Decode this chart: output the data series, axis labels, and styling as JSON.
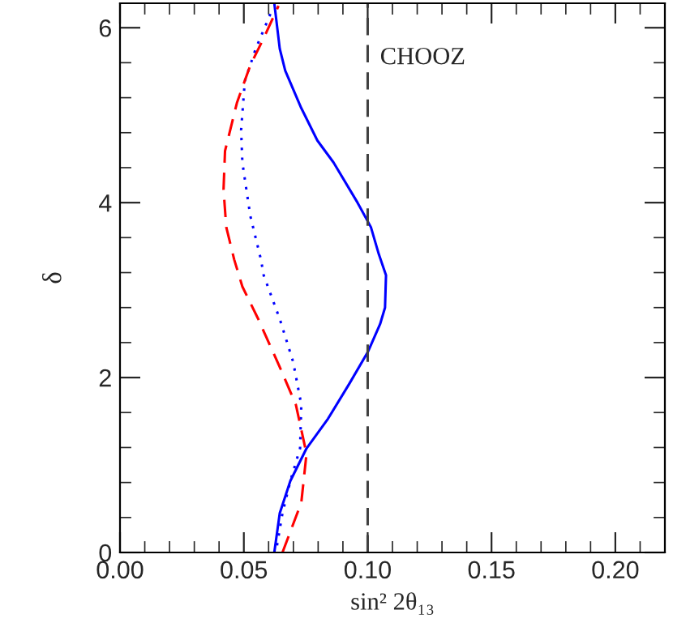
{
  "chart_data": {
    "type": "line",
    "xlabel": "sin² 2θ₁₃",
    "ylabel": "δ",
    "xlim": [
      0,
      0.22
    ],
    "xticks": [
      {
        "value": 0,
        "label": "0.00"
      },
      {
        "value": 0.05,
        "label": "0.05"
      },
      {
        "value": 0.1,
        "label": "0.10"
      },
      {
        "value": 0.15,
        "label": "0.15"
      },
      {
        "value": 0.2,
        "label": "0.20"
      }
    ],
    "ylim": [
      0,
      6.28
    ],
    "yticks": [
      0,
      2,
      4,
      6
    ],
    "grid": false,
    "legend": false,
    "series": [
      {
        "color": "#0000ff",
        "line_style": "solid",
        "x": [
          0.0623,
          0.0645,
          0.0688,
          0.0753,
          0.084,
          0.0926,
          0.1002,
          0.105,
          0.107,
          0.1074,
          0.1045,
          0.1013,
          0.0959,
          0.0862,
          0.0797,
          0.0732,
          0.0667,
          0.0645,
          0.0623
        ],
        "values": [
          0,
          0.45,
          0.82,
          1.19,
          1.53,
          1.93,
          2.3,
          2.61,
          2.8,
          3.17,
          3.41,
          3.72,
          4.0,
          4.46,
          4.71,
          5.08,
          5.51,
          5.76,
          6.28
        ]
      },
      {
        "color": "#0000ff",
        "line_style": "dotted",
        "x": [
          0.0634,
          0.0656,
          0.0688,
          0.0727,
          0.0732,
          0.0699,
          0.0645,
          0.058,
          0.0569,
          0.0526,
          0.0494,
          0.0489,
          0.0504,
          0.0548,
          0.0612
        ],
        "values": [
          0.08,
          0.45,
          0.82,
          1.19,
          1.69,
          2.18,
          2.67,
          3.17,
          3.35,
          3.85,
          4.46,
          4.83,
          5.39,
          5.76,
          6.19
        ]
      },
      {
        "color": "#ff0000",
        "line_style": "dashed",
        "x": [
          0.0656,
          0.0732,
          0.0753,
          0.071,
          0.0645,
          0.0558,
          0.0494,
          0.0461,
          0.0429,
          0.0418,
          0.0424,
          0.0472,
          0.0526,
          0.058,
          0.064
        ],
        "values": [
          0,
          0.57,
          1.13,
          1.69,
          2.12,
          2.67,
          3.04,
          3.35,
          3.72,
          4.15,
          4.59,
          5.14,
          5.57,
          5.88,
          6.25
        ]
      }
    ],
    "ref_lines": [
      {
        "axis": "x",
        "value": 0.1,
        "label": "CHOOZ",
        "color": "#404040",
        "line_style": "dashed"
      }
    ]
  }
}
